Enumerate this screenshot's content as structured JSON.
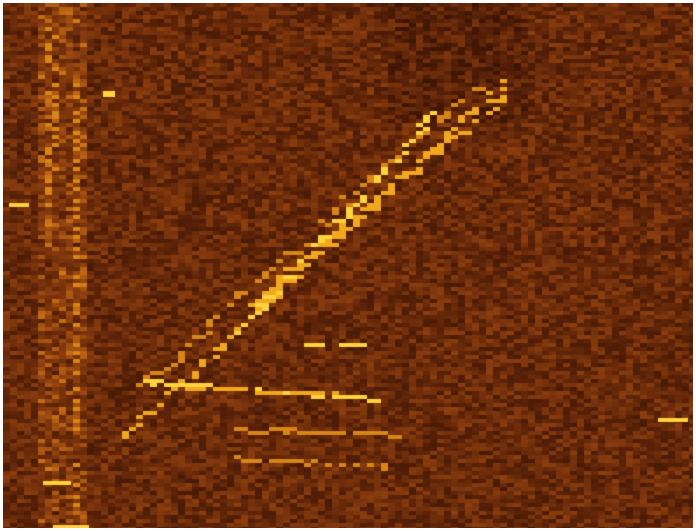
{
  "image": {
    "description_kind": "spectrogram-like heatmap",
    "palette": {
      "background_dark": "#2a0c02",
      "background_mid": "#6a2a08",
      "background_warm": "#9a4a10",
      "highlight": "#f6b020",
      "peak": "#ffd640"
    }
  }
}
